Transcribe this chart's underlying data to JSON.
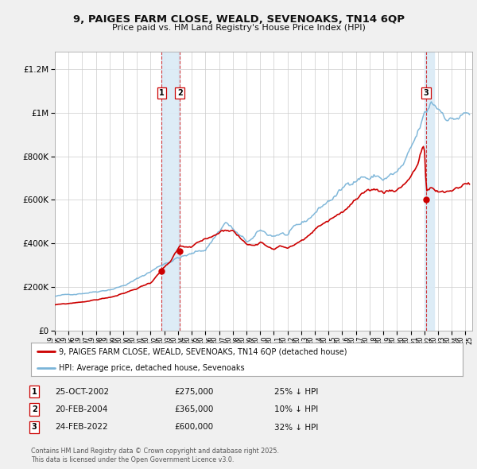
{
  "title_line1": "9, PAIGES FARM CLOSE, WEALD, SEVENOAKS, TN14 6QP",
  "title_line2": "Price paid vs. HM Land Registry's House Price Index (HPI)",
  "xlim_start": 1995.0,
  "xlim_end": 2025.5,
  "ylim_min": 0,
  "ylim_max": 1280000,
  "background_color": "#f0f0f0",
  "plot_bg_color": "#ffffff",
  "hpi_color": "#7ab4d8",
  "price_color": "#cc0000",
  "vshade_color": "#daeaf6",
  "vline_color": "#cc0000",
  "grid_color": "#cccccc",
  "legend_label_price": "9, PAIGES FARM CLOSE, WEALD, SEVENOAKS, TN14 6QP (detached house)",
  "legend_label_hpi": "HPI: Average price, detached house, Sevenoaks",
  "transactions": [
    {
      "num": 1,
      "date_str": "25-OCT-2002",
      "year": 2002.81,
      "price": 275000,
      "pct": "25%",
      "dir": "↓"
    },
    {
      "num": 2,
      "date_str": "20-FEB-2004",
      "year": 2004.13,
      "price": 365000,
      "pct": "10%",
      "dir": "↓"
    },
    {
      "num": 3,
      "date_str": "24-FEB-2022",
      "year": 2022.14,
      "price": 600000,
      "pct": "32%",
      "dir": "↓"
    }
  ],
  "footer_line1": "Contains HM Land Registry data © Crown copyright and database right 2025.",
  "footer_line2": "This data is licensed under the Open Government Licence v3.0.",
  "hpi_keypoints": [
    [
      1995.0,
      158000
    ],
    [
      1996.0,
      163000
    ],
    [
      1997.0,
      175000
    ],
    [
      1998.0,
      187000
    ],
    [
      1999.0,
      202000
    ],
    [
      2000.0,
      222000
    ],
    [
      2001.0,
      252000
    ],
    [
      2002.0,
      290000
    ],
    [
      2003.0,
      330000
    ],
    [
      2004.0,
      365000
    ],
    [
      2005.0,
      378000
    ],
    [
      2006.0,
      400000
    ],
    [
      2007.5,
      545000
    ],
    [
      2008.5,
      470000
    ],
    [
      2009.0,
      435000
    ],
    [
      2009.5,
      450000
    ],
    [
      2010.0,
      480000
    ],
    [
      2010.5,
      460000
    ],
    [
      2011.0,
      455000
    ],
    [
      2011.5,
      470000
    ],
    [
      2012.0,
      460000
    ],
    [
      2012.5,
      480000
    ],
    [
      2013.0,
      490000
    ],
    [
      2013.5,
      510000
    ],
    [
      2014.0,
      545000
    ],
    [
      2014.5,
      575000
    ],
    [
      2015.0,
      600000
    ],
    [
      2015.5,
      625000
    ],
    [
      2016.0,
      650000
    ],
    [
      2016.5,
      680000
    ],
    [
      2017.0,
      710000
    ],
    [
      2017.5,
      730000
    ],
    [
      2018.0,
      720000
    ],
    [
      2018.5,
      730000
    ],
    [
      2019.0,
      715000
    ],
    [
      2019.5,
      730000
    ],
    [
      2020.0,
      740000
    ],
    [
      2020.5,
      770000
    ],
    [
      2021.0,
      820000
    ],
    [
      2021.5,
      880000
    ],
    [
      2022.0,
      960000
    ],
    [
      2022.5,
      1010000
    ],
    [
      2022.14,
      960000
    ],
    [
      2023.0,
      990000
    ],
    [
      2023.5,
      970000
    ],
    [
      2024.0,
      960000
    ],
    [
      2024.5,
      970000
    ],
    [
      2025.0,
      980000
    ],
    [
      2025.3,
      975000
    ]
  ],
  "price_keypoints": [
    [
      1995.0,
      118000
    ],
    [
      1996.0,
      122000
    ],
    [
      1997.0,
      131000
    ],
    [
      1998.0,
      140000
    ],
    [
      1999.0,
      152000
    ],
    [
      2000.0,
      167000
    ],
    [
      2001.0,
      190000
    ],
    [
      2002.0,
      218000
    ],
    [
      2002.81,
      275000
    ],
    [
      2003.0,
      285000
    ],
    [
      2003.5,
      310000
    ],
    [
      2004.13,
      365000
    ],
    [
      2004.5,
      360000
    ],
    [
      2005.0,
      355000
    ],
    [
      2005.5,
      370000
    ],
    [
      2006.0,
      380000
    ],
    [
      2006.5,
      395000
    ],
    [
      2007.0,
      415000
    ],
    [
      2007.5,
      430000
    ],
    [
      2008.0,
      430000
    ],
    [
      2008.5,
      400000
    ],
    [
      2009.0,
      370000
    ],
    [
      2009.5,
      365000
    ],
    [
      2010.0,
      390000
    ],
    [
      2010.5,
      375000
    ],
    [
      2011.0,
      370000
    ],
    [
      2011.5,
      380000
    ],
    [
      2012.0,
      372000
    ],
    [
      2012.5,
      390000
    ],
    [
      2013.0,
      400000
    ],
    [
      2013.5,
      418000
    ],
    [
      2014.0,
      445000
    ],
    [
      2014.5,
      470000
    ],
    [
      2015.0,
      490000
    ],
    [
      2015.5,
      510000
    ],
    [
      2016.0,
      530000
    ],
    [
      2016.5,
      555000
    ],
    [
      2017.0,
      580000
    ],
    [
      2017.5,
      595000
    ],
    [
      2018.0,
      585000
    ],
    [
      2018.5,
      595000
    ],
    [
      2019.0,
      582000
    ],
    [
      2019.5,
      595000
    ],
    [
      2020.0,
      603000
    ],
    [
      2020.5,
      628000
    ],
    [
      2021.0,
      670000
    ],
    [
      2021.5,
      720000
    ],
    [
      2021.8,
      790000
    ],
    [
      2022.0,
      795000
    ],
    [
      2022.14,
      600000
    ],
    [
      2022.5,
      615000
    ],
    [
      2022.8,
      600000
    ],
    [
      2023.0,
      590000
    ],
    [
      2023.5,
      580000
    ],
    [
      2024.0,
      590000
    ],
    [
      2024.5,
      605000
    ],
    [
      2025.0,
      620000
    ],
    [
      2025.3,
      625000
    ]
  ]
}
